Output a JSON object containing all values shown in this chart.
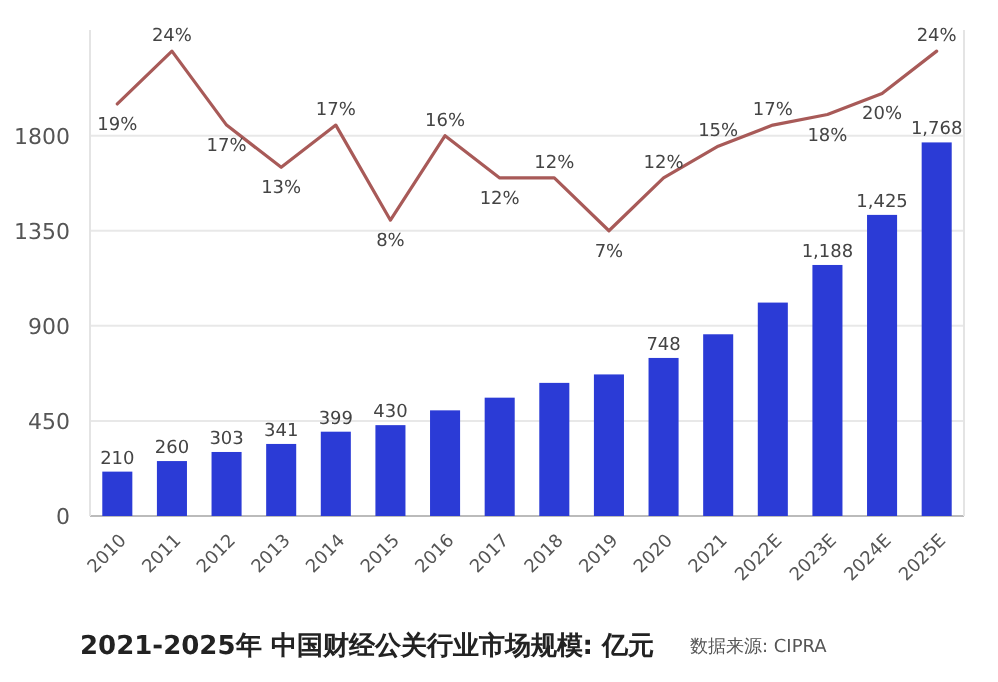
{
  "chart_data": {
    "type": "bar",
    "title": "2021-2025年 中国财经公关行业市场规模: 亿元",
    "annotations": [
      "数据来源: CIPRA"
    ],
    "categories": [
      "2010",
      "2011",
      "2012",
      "2013",
      "2014",
      "2015",
      "2016",
      "2017",
      "2018",
      "2019",
      "2020",
      "2021",
      "2022E",
      "2023E",
      "2024E",
      "2025E"
    ],
    "series": [
      {
        "color": "#2b3bd6",
        "values": [
          210,
          260,
          303,
          341,
          399,
          430,
          500,
          560,
          630,
          670,
          748,
          860,
          1010,
          1188,
          1425,
          1768
        ],
        "value_labels": [
          "210",
          "260",
          "303",
          "341",
          "399",
          "430",
          null,
          null,
          null,
          null,
          "748",
          null,
          null,
          "1,188",
          "1,425",
          "1,768"
        ]
      },
      {
        "type": "line",
        "axis": "y2",
        "color": "#a85a58",
        "values": [
          19,
          24,
          17,
          13,
          17,
          8,
          16,
          12,
          12,
          7,
          12,
          15,
          17,
          18,
          20,
          24
        ],
        "value_labels": [
          "19%",
          "24%",
          "17%",
          "13%",
          "17%",
          "8%",
          "16%",
          "12%",
          "12%",
          "7%",
          "12%",
          "15%",
          "17%",
          "18%",
          "20%",
          "24%"
        ]
      }
    ],
    "ylim": [
      0,
      2300
    ],
    "yticks": [
      0,
      450,
      900,
      1350,
      1800
    ],
    "y2lim": [
      -20,
      26
    ],
    "grid": "y"
  }
}
